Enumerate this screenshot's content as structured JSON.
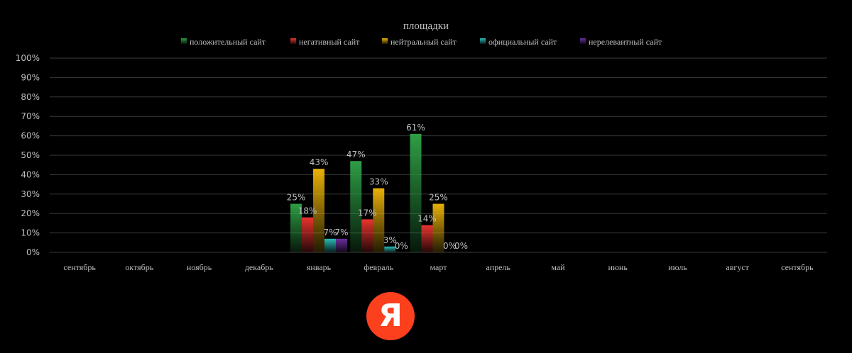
{
  "chart_data": {
    "type": "bar",
    "title": "площадки",
    "categories": [
      "сентябрь",
      "октябрь",
      "ноябрь",
      "декабрь",
      "январь",
      "февраль",
      "март",
      "апрель",
      "май",
      "июнь",
      "июль",
      "август",
      "сентябрь"
    ],
    "series": [
      {
        "name": "положительный сайт",
        "color": "#2e9e45",
        "values": [
          null,
          null,
          null,
          null,
          25,
          47,
          61,
          null,
          null,
          null,
          null,
          null,
          null
        ],
        "labels": [
          "",
          "",
          "",
          "",
          "25%",
          "47%",
          "61%",
          "",
          "",
          "",
          "",
          "",
          ""
        ]
      },
      {
        "name": "негативный сайт",
        "color": "#e8342e",
        "values": [
          null,
          null,
          null,
          null,
          18,
          17,
          14,
          null,
          null,
          null,
          null,
          null,
          null
        ],
        "labels": [
          "",
          "",
          "",
          "",
          "18%",
          "17%",
          "14%",
          "",
          "",
          "",
          "",
          "",
          ""
        ]
      },
      {
        "name": "нейтральный сайт",
        "color": "#e8b007",
        "values": [
          null,
          null,
          null,
          null,
          43,
          33,
          25,
          null,
          null,
          null,
          null,
          null,
          null
        ],
        "labels": [
          "",
          "",
          "",
          "",
          "43%",
          "33%",
          "25%",
          "",
          "",
          "",
          "",
          "",
          ""
        ]
      },
      {
        "name": "официальный сайт",
        "color": "#2bbcb4",
        "values": [
          null,
          null,
          null,
          null,
          7,
          3,
          0,
          null,
          null,
          null,
          null,
          null,
          null
        ],
        "labels": [
          "",
          "",
          "",
          "",
          "7%",
          "3%",
          "0%",
          "",
          "",
          "",
          "",
          "",
          ""
        ]
      },
      {
        "name": "нерелевантный сайт",
        "color": "#6a2fa0",
        "values": [
          null,
          null,
          null,
          null,
          7,
          0,
          0,
          null,
          null,
          null,
          null,
          null,
          null
        ],
        "labels": [
          "",
          "",
          "",
          "",
          "7%",
          "0%",
          "0%",
          "",
          "",
          "",
          "",
          "",
          ""
        ]
      }
    ],
    "ylim": [
      0,
      100
    ],
    "yticks": [
      "0%",
      "10%",
      "20%",
      "30%",
      "40%",
      "50%",
      "60%",
      "70%",
      "80%",
      "90%",
      "100%"
    ],
    "grid": true,
    "legend_position": "top"
  },
  "logo": {
    "letter": "Я",
    "name": "yandex-logo",
    "color": "#fc3f1d"
  }
}
